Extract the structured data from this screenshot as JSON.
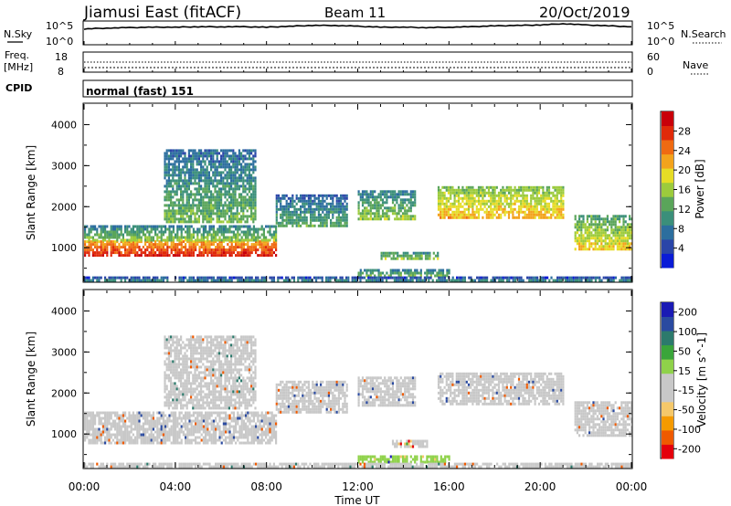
{
  "header": {
    "station": "Jiamusi East (fitACF)",
    "beam": "Beam 11",
    "date": "20/Oct/2019",
    "cpid_label": "CPID",
    "cpid_value": "normal (fast) 151"
  },
  "colors": {
    "noise_line": "#000000",
    "power_scale": [
      "#0a1bd6",
      "#2a45a8",
      "#2c6e9e",
      "#3b8f7a",
      "#5aa55a",
      "#9ccb3c",
      "#e6dc26",
      "#f3a31c",
      "#ef6a12",
      "#e02a0a",
      "#c8000a"
    ],
    "velocity_scale": [
      "#e4000c",
      "#ef5a00",
      "#f59a00",
      "#f5c86a",
      "#c8c8c8",
      "#c8c8c8",
      "#8fd24a",
      "#3aa53a",
      "#2c7a6c",
      "#2a4aa0",
      "#1a1ab4"
    ]
  },
  "chart_data": [
    {
      "type": "line",
      "panel": "noise",
      "left_label": "N.Sky",
      "right_label": "N.Search",
      "yticks_left": [
        "10^5",
        "10^0"
      ],
      "yticks_right": [
        "10^5",
        "10^0"
      ],
      "x": [
        0,
        1,
        2,
        3,
        4,
        5,
        6,
        7,
        8,
        9,
        10,
        11,
        12,
        13,
        14,
        15,
        16,
        17,
        18,
        19,
        20,
        21,
        22,
        23,
        24
      ],
      "values": [
        3.4,
        3.6,
        3.7,
        3.8,
        3.8,
        3.9,
        3.9,
        3.9,
        3.8,
        4.0,
        4.2,
        4.2,
        4.0,
        3.8,
        3.8,
        3.7,
        3.8,
        3.9,
        4.1,
        4.2,
        4.3,
        4.6,
        4.3,
        4.1,
        3.9
      ]
    },
    {
      "type": "line",
      "panel": "frequency",
      "left_label": "Freq.",
      "left_unit": "[MHz]",
      "right_label": "Nave",
      "yticks_left": [
        "18",
        "8"
      ],
      "yticks_right": [
        "60",
        "0"
      ],
      "freq_mhz": 10.0,
      "nave": 30
    },
    {
      "type": "heatmap",
      "panel": "power",
      "ylabel": "Slant Range [km]",
      "yticks": [
        "1000",
        "2000",
        "3000",
        "4000"
      ],
      "ylim": [
        180,
        4500
      ],
      "colorbar_label": "Power [dB]",
      "colorbar_ticks": [
        "4",
        "8",
        "12",
        "16",
        "20",
        "24",
        "28"
      ],
      "clim": [
        0,
        30
      ],
      "regions": [
        {
          "x": [
            0.0,
            8.4
          ],
          "y": [
            780,
            1180
          ],
          "value": 26
        },
        {
          "x": [
            0.0,
            8.4
          ],
          "y": [
            1180,
            1550
          ],
          "value": 12
        },
        {
          "x": [
            3.5,
            7.5
          ],
          "y": [
            1600,
            3400
          ],
          "value": 10
        },
        {
          "x": [
            8.4,
            11.5
          ],
          "y": [
            1500,
            2300
          ],
          "value": 9
        },
        {
          "x": [
            12.0,
            14.5
          ],
          "y": [
            1700,
            2400
          ],
          "value": 12
        },
        {
          "x": [
            13.0,
            15.5
          ],
          "y": [
            700,
            900
          ],
          "value": 14
        },
        {
          "x": [
            12.0,
            16.0
          ],
          "y": [
            280,
            480
          ],
          "value": 12
        },
        {
          "x": [
            15.5,
            21.0
          ],
          "y": [
            1700,
            2500
          ],
          "value": 18
        },
        {
          "x": [
            21.5,
            24.0
          ],
          "y": [
            950,
            1800
          ],
          "value": 16
        },
        {
          "x": [
            0.0,
            24.0
          ],
          "y": [
            180,
            300
          ],
          "value": 8
        }
      ]
    },
    {
      "type": "heatmap",
      "panel": "velocity",
      "ylabel": "Slant Range [km]",
      "yticks": [
        "1000",
        "2000",
        "3000",
        "4000"
      ],
      "ylim": [
        180,
        4500
      ],
      "colorbar_label": "Velocity [m s^-1]",
      "colorbar_ticks": [
        "200",
        "100",
        "50",
        "15",
        "-15",
        "-50",
        "-100",
        "-200"
      ],
      "clim": [
        -250,
        250
      ],
      "regions": [
        {
          "x": [
            0.0,
            8.4
          ],
          "y": [
            780,
            1550
          ],
          "value": 0
        },
        {
          "x": [
            3.5,
            7.5
          ],
          "y": [
            1600,
            3400
          ],
          "value": -20
        },
        {
          "x": [
            8.4,
            11.5
          ],
          "y": [
            1500,
            2300
          ],
          "value": 0
        },
        {
          "x": [
            12.0,
            14.5
          ],
          "y": [
            1700,
            2400
          ],
          "value": 0
        },
        {
          "x": [
            13.5,
            15.0
          ],
          "y": [
            720,
            860
          ],
          "value": -60
        },
        {
          "x": [
            12.0,
            16.0
          ],
          "y": [
            280,
            480
          ],
          "value": 60
        },
        {
          "x": [
            15.5,
            21.0
          ],
          "y": [
            1700,
            2500
          ],
          "value": 0
        },
        {
          "x": [
            21.5,
            24.0
          ],
          "y": [
            950,
            1800
          ],
          "value": 0
        },
        {
          "x": [
            0.0,
            24.0
          ],
          "y": [
            180,
            300
          ],
          "value": -40
        }
      ]
    }
  ],
  "xaxis": {
    "label": "Time UT",
    "ticks": [
      "00:00",
      "04:00",
      "08:00",
      "12:00",
      "16:00",
      "20:00",
      "00:00"
    ],
    "range_hours": [
      0,
      24
    ]
  }
}
